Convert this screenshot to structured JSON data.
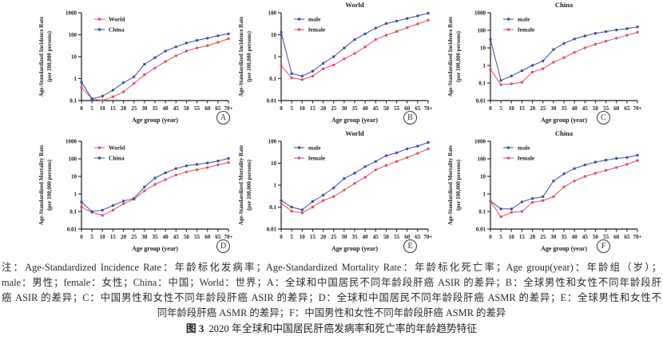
{
  "colors": {
    "red": "#e25063",
    "blue": "#3b4fa5",
    "axis": "#1b1b1b"
  },
  "caption": {
    "note_lines": [
      "注：Age-Standardized Incidence Rate：年龄标化发病率；Age-Standardized Mortality Rate：年龄标化死亡率；Age group(year)：年龄组（岁）；",
      "male：男性；female：女性；China：中国；World：世界；A：全球和中国居民不同年龄段肝癌 ASIR 的差异；B：全球男性和女性不同年龄段肝",
      "癌 ASIR 的差异；C：中国男性和女性不同年龄段肝癌 ASIR 的差异；D：全球和中国居民不同年龄段肝癌 ASMR 的差异；E：全球男性和女性不",
      "同年龄段肝癌 ASMR 的差异；F：中国男性和女性不同年龄段肝癌 ASMR 的差异"
    ],
    "figure_label": "图 3",
    "figure_text": "2020 年全球和中国居民肝癌发病率和死亡率的年龄趋势特征"
  },
  "chart_data": [
    {
      "panel": "A",
      "type": "line",
      "title": "",
      "ylabel": "Age-Standardized Incidence Rate",
      "ylabel2": "(per 100,000 persons)",
      "xlabel": "Age group (year)",
      "yscale": "log",
      "ylim": [
        0.1,
        1000
      ],
      "yticks": [
        "0.1",
        "1",
        "10",
        "100",
        "1000"
      ],
      "legend_position": "top-left-inside",
      "categories": [
        "0",
        "5",
        "10",
        "15",
        "20",
        "25",
        "30",
        "35",
        "40",
        "45",
        "50",
        "55",
        "60",
        "65",
        "70+"
      ],
      "series": [
        {
          "name": "World",
          "color": "#e25063",
          "values": [
            0.4,
            0.12,
            0.1,
            0.15,
            0.25,
            0.6,
            1.5,
            3,
            6,
            11,
            18,
            25,
            32,
            45,
            65
          ]
        },
        {
          "name": "China",
          "color": "#3b4fa5",
          "values": [
            0.7,
            0.12,
            0.16,
            0.3,
            0.65,
            1.2,
            4.5,
            9,
            18,
            28,
            42,
            55,
            70,
            90,
            110
          ]
        }
      ]
    },
    {
      "panel": "B",
      "type": "line",
      "title": "World",
      "ylabel": "Age-Standardized Incidence Rate",
      "ylabel2": "(per 100,000 persons)",
      "xlabel": "Age group (year)",
      "yscale": "log",
      "ylim": [
        0.01,
        100
      ],
      "yticks": [
        "0.01",
        "0.1",
        "1",
        "10",
        "100"
      ],
      "legend_position": "top-left-inside",
      "categories": [
        "0",
        "5",
        "10",
        "15",
        "20",
        "25",
        "30",
        "35",
        "40",
        "45",
        "50",
        "55",
        "60",
        "65",
        "70+"
      ],
      "series": [
        {
          "name": "male",
          "color": "#3b4fa5",
          "values": [
            13,
            0.17,
            0.13,
            0.22,
            0.5,
            1.0,
            2.5,
            6,
            11,
            20,
            32,
            42,
            55,
            72,
            95
          ]
        },
        {
          "name": "female",
          "color": "#e25063",
          "values": [
            0.38,
            0.11,
            0.09,
            0.13,
            0.28,
            0.42,
            0.8,
            1.4,
            2.8,
            6,
            9.5,
            14,
            21,
            31,
            46
          ]
        }
      ]
    },
    {
      "panel": "C",
      "type": "line",
      "title": "China",
      "ylabel": "Age-Standardized Incidence Rate",
      "ylabel2": "(per 100,000 persons)",
      "xlabel": "Age group (year)",
      "yscale": "log",
      "ylim": [
        0.01,
        1000
      ],
      "yticks": [
        "0.01",
        "0.1",
        "1",
        "10",
        "100",
        "1000"
      ],
      "legend_position": "top-left-inside",
      "categories": [
        "0",
        "5",
        "10",
        "15",
        "20",
        "25",
        "30",
        "35",
        "40",
        "45",
        "50",
        "55",
        "60",
        "65",
        "70+"
      ],
      "series": [
        {
          "name": "male",
          "color": "#3b4fa5",
          "values": [
            30,
            0.14,
            0.25,
            0.5,
            1.0,
            1.8,
            8,
            18,
            32,
            48,
            68,
            85,
            105,
            125,
            155
          ]
        },
        {
          "name": "female",
          "color": "#e25063",
          "values": [
            0.6,
            0.08,
            0.09,
            0.11,
            0.42,
            0.65,
            1.5,
            2.8,
            5.5,
            10,
            16,
            24,
            36,
            52,
            78
          ]
        }
      ]
    },
    {
      "panel": "D",
      "type": "line",
      "title": "",
      "ylabel": "Age-Standardized Mortality Rate",
      "ylabel2": "(per 100,000 persons)",
      "xlabel": "Age group (year)",
      "yscale": "log",
      "ylim": [
        0.01,
        1000
      ],
      "yticks": [
        "0.01",
        "0.1",
        "1",
        "10",
        "100",
        "1000"
      ],
      "legend_position": "top-left-inside",
      "categories": [
        "0",
        "5",
        "10",
        "15",
        "20",
        "25",
        "30",
        "35",
        "40",
        "45",
        "50",
        "55",
        "60",
        "65",
        "70+"
      ],
      "series": [
        {
          "name": "World",
          "color": "#e25063",
          "values": [
            0.18,
            0.09,
            0.06,
            0.12,
            0.28,
            0.5,
            1.5,
            3.5,
            6.5,
            12,
            18,
            24,
            32,
            45,
            62
          ]
        },
        {
          "name": "China",
          "color": "#3b4fa5",
          "values": [
            0.35,
            0.1,
            0.12,
            0.22,
            0.4,
            0.55,
            2.5,
            8,
            16,
            28,
            40,
            48,
            58,
            75,
            105
          ]
        }
      ]
    },
    {
      "panel": "E",
      "type": "line",
      "title": "World",
      "ylabel": "Age-Standardized Mortality Rate",
      "ylabel2": "(per 100,000 persons)",
      "xlabel": "Age group (year)",
      "yscale": "log",
      "ylim": [
        0.01,
        100
      ],
      "yticks": [
        "0.01",
        "0.1",
        "1",
        "10",
        "100"
      ],
      "legend_position": "top-left-inside",
      "categories": [
        "0",
        "5",
        "10",
        "15",
        "20",
        "25",
        "30",
        "35",
        "40",
        "45",
        "50",
        "55",
        "60",
        "65",
        "70+"
      ],
      "series": [
        {
          "name": "male",
          "color": "#3b4fa5",
          "values": [
            0.2,
            0.1,
            0.075,
            0.18,
            0.35,
            0.75,
            2,
            3.5,
            7,
            12,
            22,
            30,
            45,
            60,
            88
          ]
        },
        {
          "name": "female",
          "color": "#e25063",
          "values": [
            0.15,
            0.065,
            0.055,
            0.1,
            0.2,
            0.3,
            0.6,
            1.2,
            2.3,
            5,
            8,
            12,
            18,
            28,
            45
          ]
        }
      ]
    },
    {
      "panel": "F",
      "type": "line",
      "title": "China",
      "ylabel": "Age-Standardized Mortality Rate",
      "ylabel2": "(per 100,000 persons)",
      "xlabel": "Age group (year)",
      "yscale": "log",
      "ylim": [
        0.01,
        1000
      ],
      "yticks": [
        "0.01",
        "0.1",
        "1",
        "10",
        "100",
        "1000"
      ],
      "legend_position": "top-left-inside",
      "categories": [
        "0",
        "5",
        "10",
        "15",
        "20",
        "25",
        "30",
        "35",
        "40",
        "45",
        "50",
        "55",
        "60",
        "65",
        "70+"
      ],
      "series": [
        {
          "name": "male",
          "color": "#3b4fa5",
          "values": [
            0.4,
            0.14,
            0.14,
            0.35,
            0.55,
            0.7,
            5.5,
            14,
            28,
            45,
            65,
            85,
            105,
            120,
            160
          ]
        },
        {
          "name": "female",
          "color": "#e25063",
          "values": [
            0.38,
            0.05,
            0.09,
            0.1,
            0.33,
            0.42,
            0.7,
            2.5,
            5.5,
            10,
            15,
            22,
            32,
            48,
            80
          ]
        }
      ]
    }
  ]
}
